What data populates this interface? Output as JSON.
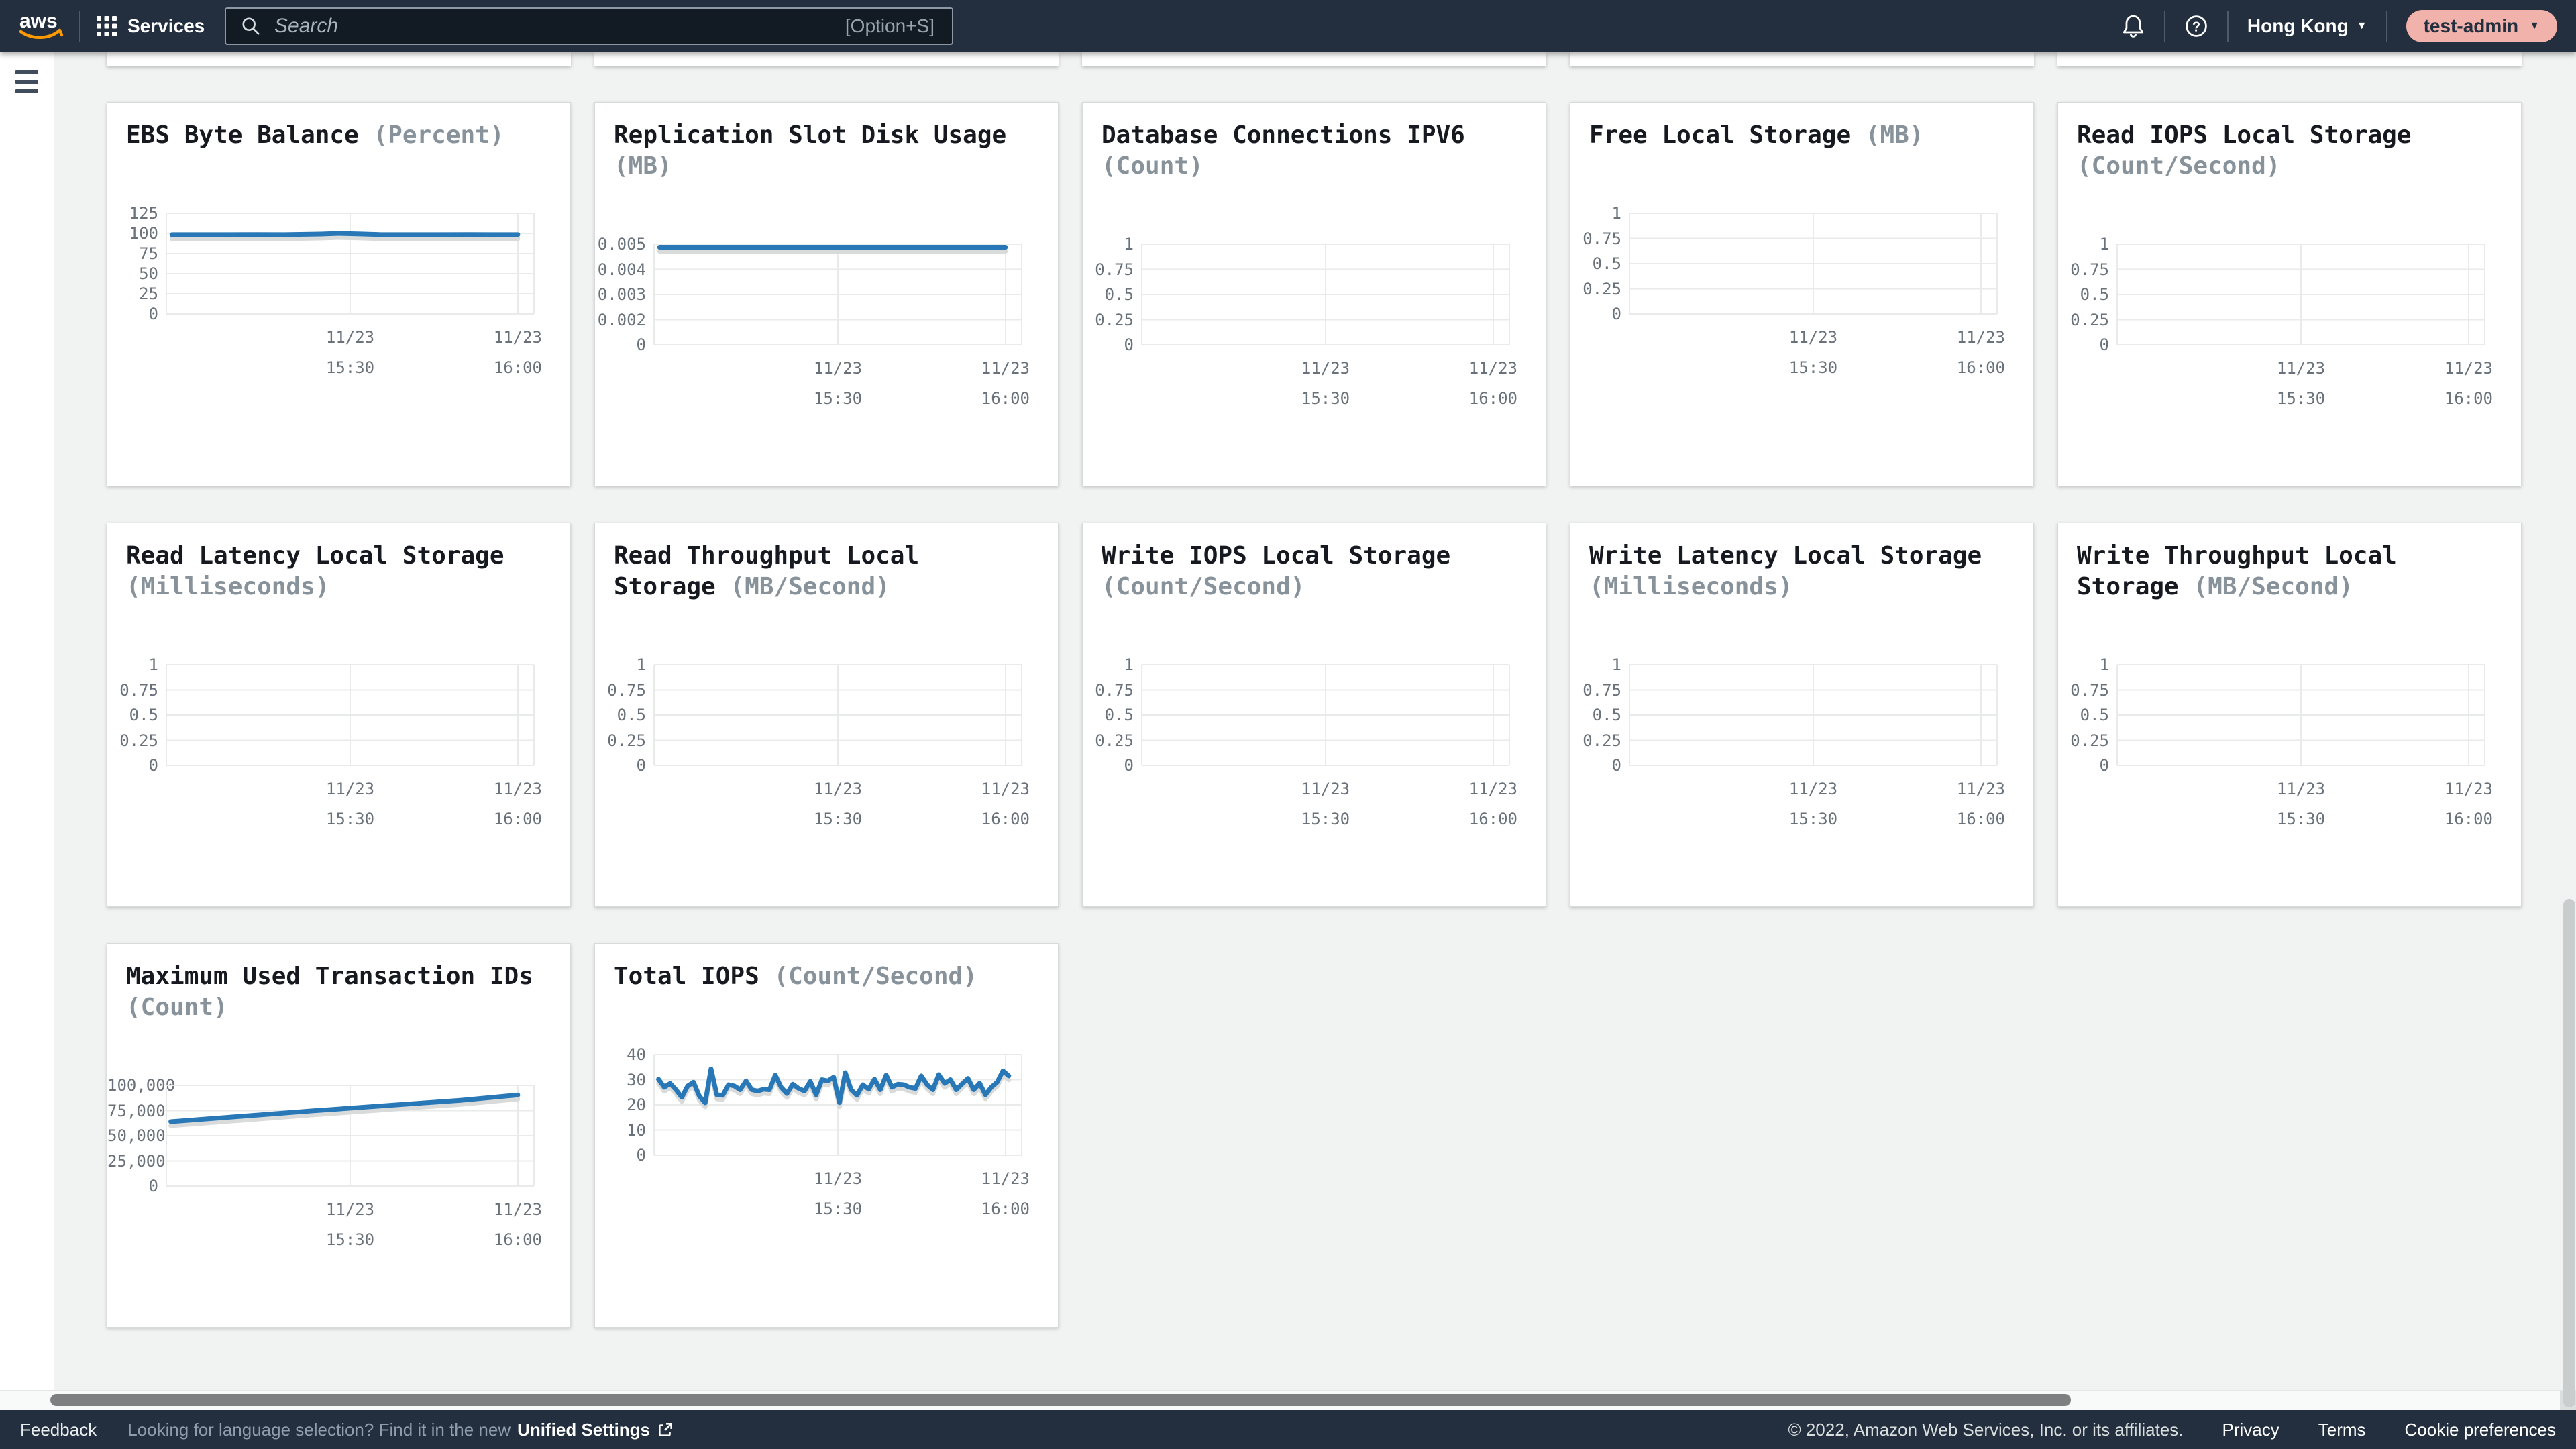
{
  "topbar": {
    "logo_text": "aws",
    "services_label": "Services",
    "search_placeholder": "Search",
    "search_shortcut": "[Option+S]",
    "region": "Hong Kong",
    "account": "test-admin"
  },
  "footer": {
    "feedback": "Feedback",
    "language_hint": "Looking for language selection? Find it in the new",
    "unified_settings": "Unified Settings",
    "copyright": "© 2022, Amazon Web Services, Inc. or its affiliates.",
    "privacy": "Privacy",
    "terms": "Terms",
    "cookie_preferences": "Cookie preferences"
  },
  "colors": {
    "topbar_bg": "#232f3e",
    "page_bg": "#f1f2f2",
    "card_bg": "#ffffff",
    "line_blue": "#2878b8",
    "line_shadow": "#d9dbdb",
    "grid": "#e9eaea",
    "tick_text": "#69727a",
    "title_text": "#16191f",
    "unit_text": "#87929a",
    "account_pill_bg": "#f2b2ac",
    "aws_smile_orange": "#ff9900"
  },
  "chart_data": [
    {
      "type": "line",
      "title": "EBS Byte Balance",
      "unit_label": "(Percent)",
      "y_ticks": [
        "125",
        "100",
        "75",
        "50",
        "25",
        "0"
      ],
      "ylim": [
        0,
        125
      ],
      "x_ticks": [
        {
          "pos": 0.5,
          "lines": [
            "11/23",
            "15:30"
          ]
        },
        {
          "pos": 0.956,
          "lines": [
            "11/23",
            "16:00"
          ]
        }
      ],
      "x": [
        0.015,
        0.08,
        0.16,
        0.24,
        0.32,
        0.42,
        0.47,
        0.52,
        0.58,
        0.66,
        0.74,
        0.82,
        0.89,
        0.956
      ],
      "values": [
        98.4,
        98.4,
        98.4,
        98.5,
        98.4,
        99.2,
        100,
        99.3,
        98.5,
        98.4,
        98.4,
        98.5,
        98.4,
        98.4
      ]
    },
    {
      "type": "line",
      "title": "Replication Slot Disk Usage",
      "unit_label": "(MB)",
      "y_ticks": [
        "0.005",
        "0.004",
        "0.003",
        "0.002",
        "0"
      ],
      "ylim": [
        0,
        0.005
      ],
      "x_ticks": [
        {
          "pos": 0.5,
          "lines": [
            "11/23",
            "15:30"
          ]
        },
        {
          "pos": 0.956,
          "lines": [
            "11/23",
            "16:00"
          ]
        }
      ],
      "x": [
        0.015,
        0.3,
        0.6,
        0.956
      ],
      "values": [
        0.00485,
        0.00485,
        0.00485,
        0.00485
      ]
    },
    {
      "type": "line",
      "title": "Database Connections IPV6",
      "unit_label": "(Count)",
      "y_ticks": [
        "1",
        "0.75",
        "0.5",
        "0.25",
        "0"
      ],
      "ylim": [
        0,
        1
      ],
      "x_ticks": [
        {
          "pos": 0.5,
          "lines": [
            "11/23",
            "15:30"
          ]
        },
        {
          "pos": 0.956,
          "lines": [
            "11/23",
            "16:00"
          ]
        }
      ],
      "x": [],
      "values": []
    },
    {
      "type": "line",
      "title": "Free Local Storage",
      "unit_label": "(MB)",
      "y_ticks": [
        "1",
        "0.75",
        "0.5",
        "0.25",
        "0"
      ],
      "ylim": [
        0,
        1
      ],
      "x_ticks": [
        {
          "pos": 0.5,
          "lines": [
            "11/23",
            "15:30"
          ]
        },
        {
          "pos": 0.956,
          "lines": [
            "11/23",
            "16:00"
          ]
        }
      ],
      "x": [],
      "values": []
    },
    {
      "type": "line",
      "title": "Read IOPS Local Storage",
      "unit_label": "(Count/Second)",
      "y_ticks": [
        "1",
        "0.75",
        "0.5",
        "0.25",
        "0"
      ],
      "ylim": [
        0,
        1
      ],
      "x_ticks": [
        {
          "pos": 0.5,
          "lines": [
            "11/23",
            "15:30"
          ]
        },
        {
          "pos": 0.956,
          "lines": [
            "11/23",
            "16:00"
          ]
        }
      ],
      "x": [],
      "values": []
    },
    {
      "type": "line",
      "title": "Read Latency Local Storage",
      "unit_label": "(Milliseconds)",
      "y_ticks": [
        "1",
        "0.75",
        "0.5",
        "0.25",
        "0"
      ],
      "ylim": [
        0,
        1
      ],
      "x_ticks": [
        {
          "pos": 0.5,
          "lines": [
            "11/23",
            "15:30"
          ]
        },
        {
          "pos": 0.956,
          "lines": [
            "11/23",
            "16:00"
          ]
        }
      ],
      "x": [],
      "values": []
    },
    {
      "type": "line",
      "title": "Read Throughput Local Storage",
      "unit_label": "(MB/Second)",
      "y_ticks": [
        "1",
        "0.75",
        "0.5",
        "0.25",
        "0"
      ],
      "ylim": [
        0,
        1
      ],
      "x_ticks": [
        {
          "pos": 0.5,
          "lines": [
            "11/23",
            "15:30"
          ]
        },
        {
          "pos": 0.956,
          "lines": [
            "11/23",
            "16:00"
          ]
        }
      ],
      "x": [],
      "values": []
    },
    {
      "type": "line",
      "title": "Write IOPS Local Storage",
      "unit_label": "(Count/Second)",
      "y_ticks": [
        "1",
        "0.75",
        "0.5",
        "0.25",
        "0"
      ],
      "ylim": [
        0,
        1
      ],
      "x_ticks": [
        {
          "pos": 0.5,
          "lines": [
            "11/23",
            "15:30"
          ]
        },
        {
          "pos": 0.956,
          "lines": [
            "11/23",
            "16:00"
          ]
        }
      ],
      "x": [],
      "values": []
    },
    {
      "type": "line",
      "title": "Write Latency Local Storage",
      "unit_label": "(Milliseconds)",
      "y_ticks": [
        "1",
        "0.75",
        "0.5",
        "0.25",
        "0"
      ],
      "ylim": [
        0,
        1
      ],
      "x_ticks": [
        {
          "pos": 0.5,
          "lines": [
            "11/23",
            "15:30"
          ]
        },
        {
          "pos": 0.956,
          "lines": [
            "11/23",
            "16:00"
          ]
        }
      ],
      "x": [],
      "values": []
    },
    {
      "type": "line",
      "title": "Write Throughput Local Storage",
      "unit_label": "(MB/Second)",
      "y_ticks": [
        "1",
        "0.75",
        "0.5",
        "0.25",
        "0"
      ],
      "ylim": [
        0,
        1
      ],
      "x_ticks": [
        {
          "pos": 0.5,
          "lines": [
            "11/23",
            "15:30"
          ]
        },
        {
          "pos": 0.956,
          "lines": [
            "11/23",
            "16:00"
          ]
        }
      ],
      "x": [],
      "values": []
    },
    {
      "type": "line",
      "title": "Maximum Used Transaction IDs",
      "unit_label": "(Count)",
      "y_ticks": [
        "100,000",
        "75,000",
        "50,000",
        "25,000",
        "0"
      ],
      "ylim": [
        0,
        100000
      ],
      "x_ticks": [
        {
          "pos": 0.5,
          "lines": [
            "11/23",
            "15:30"
          ]
        },
        {
          "pos": 0.956,
          "lines": [
            "11/23",
            "16:00"
          ]
        }
      ],
      "x": [
        0.012,
        0.2,
        0.4,
        0.6,
        0.8,
        0.956
      ],
      "values": [
        64000,
        69300,
        74800,
        80000,
        85200,
        90500
      ]
    },
    {
      "type": "line",
      "title": "Total IOPS",
      "unit_label": "(Count/Second)",
      "y_ticks": [
        "40",
        "30",
        "20",
        "10",
        "0"
      ],
      "ylim": [
        0,
        40
      ],
      "x_ticks": [
        {
          "pos": 0.5,
          "lines": [
            "11/23",
            "15:30"
          ]
        },
        {
          "pos": 0.956,
          "lines": [
            "11/23",
            "16:00"
          ]
        }
      ],
      "x_start": 0.012,
      "x_end": 0.965,
      "values": [
        30.2,
        27,
        28.5,
        26,
        23,
        27.5,
        29,
        23.5,
        20.8,
        34.3,
        24,
        23.8,
        28,
        27.5,
        26,
        29.5,
        26,
        25.5,
        26.2,
        26,
        31.8,
        27,
        24.5,
        28.2,
        26.5,
        25.5,
        29.3,
        24,
        30,
        29.5,
        31,
        20.9,
        32.8,
        26,
        23.8,
        28,
        26.2,
        30.2,
        26,
        31.8,
        27,
        28.2,
        28,
        27,
        26.5,
        31.5,
        28,
        26,
        32,
        28.5,
        30,
        26,
        28.3,
        30.5,
        26,
        28.6,
        24,
        27,
        29,
        33.5,
        31.5
      ]
    }
  ]
}
